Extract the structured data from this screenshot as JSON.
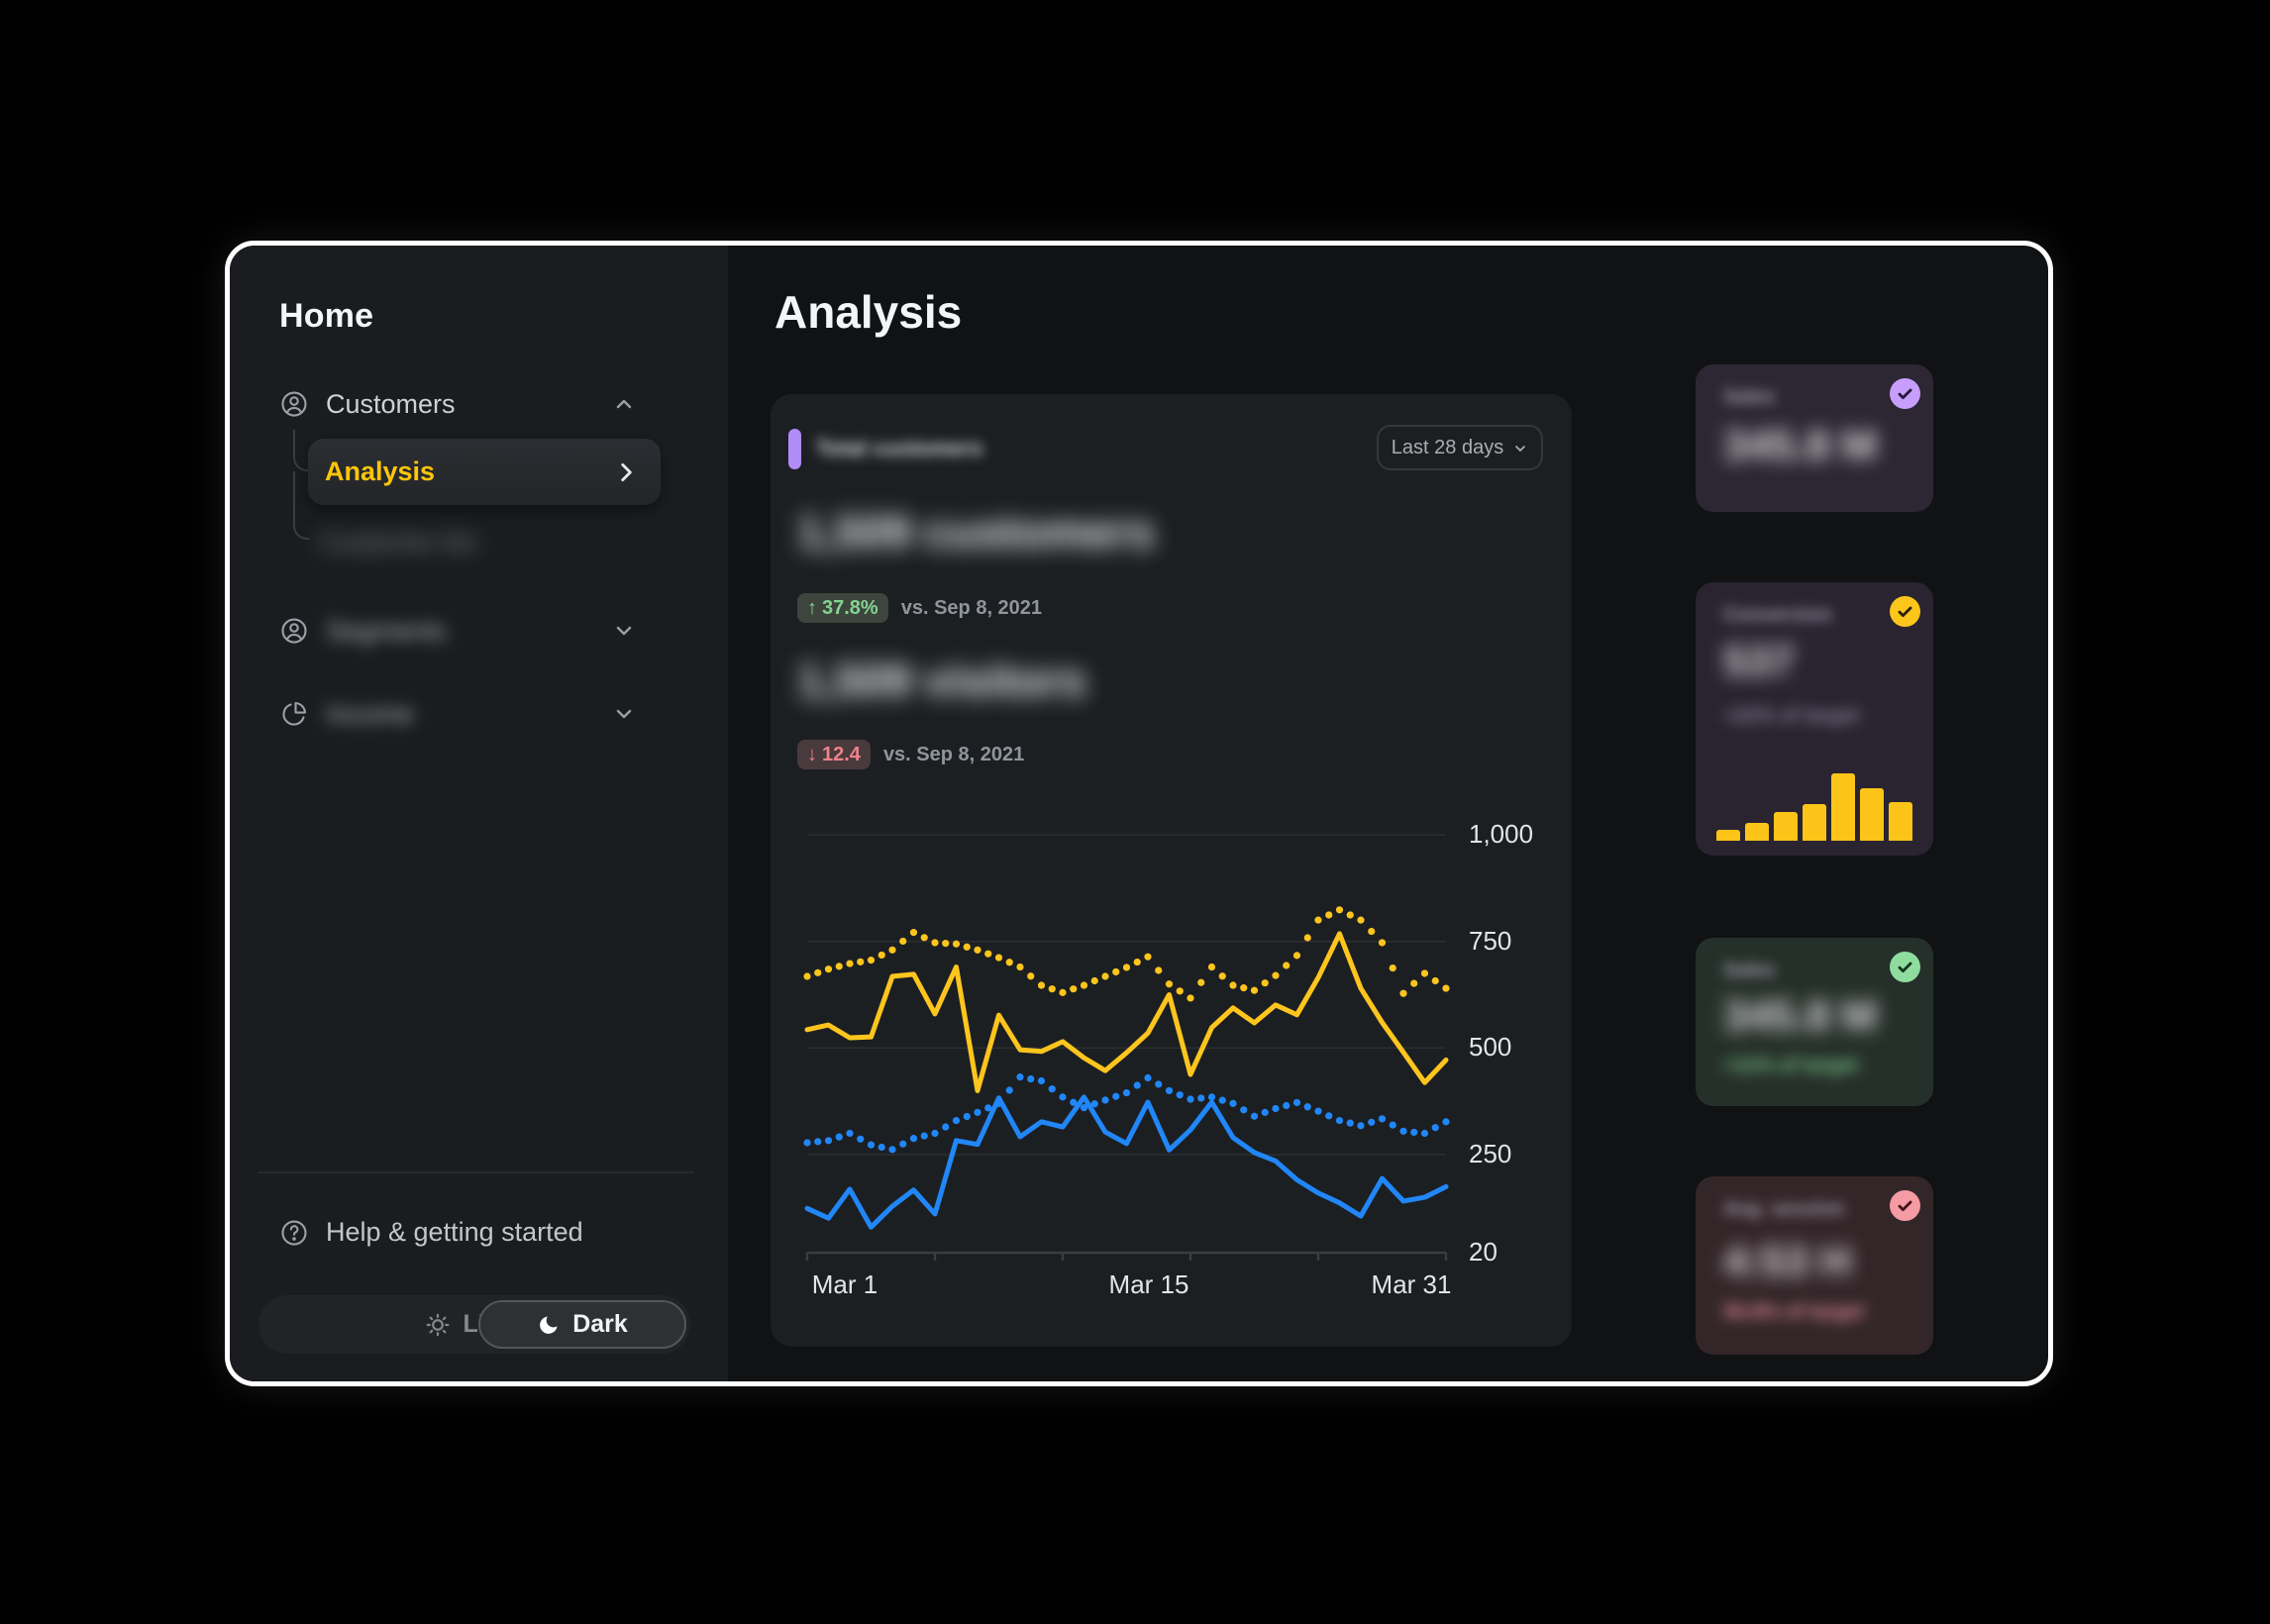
{
  "sidebar": {
    "title": "Home",
    "items": [
      {
        "label": "Customers",
        "icon": "user-circle",
        "chevron": "up",
        "blurred": false
      },
      {
        "label": "Customer list",
        "icon": null,
        "chevron": null,
        "blurred": true
      },
      {
        "label": "Segments",
        "icon": "user-circle",
        "chevron": "down",
        "blurred": true
      },
      {
        "label": "Income",
        "icon": "pie-chart",
        "chevron": "down",
        "blurred": true
      }
    ],
    "active_subitem": {
      "label": "Analysis",
      "color": "#fec60a"
    },
    "help_label": "Help & getting started",
    "theme_toggle": {
      "light_label": "Light",
      "dark_label": "Dark",
      "selected": "Dark"
    }
  },
  "main": {
    "page_title": "Analysis",
    "card": {
      "legend_label": "Total customers",
      "legend_color": "#b18cf9",
      "range_selector": "Last 28 days",
      "metrics": [
        {
          "value": "1,509 customers",
          "blurred": true,
          "badge": "37.8%",
          "direction": "up",
          "badge_color": "#84d491",
          "compare": "vs. Sep 8, 2021"
        },
        {
          "value": "1,509 visitors",
          "blurred": true,
          "badge": "12.4",
          "direction": "down",
          "badge_color": "#ef838a",
          "compare": "vs. Sep 8, 2021"
        }
      ]
    }
  },
  "chart_data": {
    "type": "line",
    "title": "Total customers - Last 28 days",
    "x_labels": [
      "Mar 1",
      "Mar 15",
      "Mar 31"
    ],
    "x_days": 31,
    "ylim": [
      20,
      1000
    ],
    "grid": true,
    "y_ticks": [
      {
        "label": "1,000",
        "value": 1000
      },
      {
        "label": "750",
        "value": 750
      },
      {
        "label": "500",
        "value": 500
      },
      {
        "label": "250",
        "value": 250
      },
      {
        "label": "20",
        "value": 20
      }
    ],
    "series": [
      {
        "name": "customers-current",
        "style": "solid",
        "color": "#fdc51d",
        "values": [
          543,
          554,
          524,
          526,
          668,
          673,
          580,
          690,
          400,
          577,
          496,
          492,
          515,
          477,
          447,
          489,
          535,
          625,
          438,
          548,
          594,
          559,
          601,
          578,
          665,
          768,
          640,
          560,
          490,
          419,
          472
        ]
      },
      {
        "name": "customers-previous",
        "style": "dotted",
        "color": "#fdc51d",
        "values": [
          668,
          685,
          698,
          706,
          730,
          771,
          747,
          744,
          730,
          712,
          690,
          647,
          630,
          647,
          668,
          689,
          714,
          650,
          617,
          690,
          647,
          635,
          670,
          717,
          800,
          824,
          800,
          747,
          628,
          675,
          640
        ]
      },
      {
        "name": "visitors-current",
        "style": "solid",
        "color": "#2187f8",
        "values": [
          124,
          101,
          169,
          80,
          129,
          167,
          111,
          283,
          274,
          383,
          292,
          327,
          315,
          385,
          303,
          276,
          373,
          261,
          308,
          373,
          290,
          255,
          235,
          191,
          160,
          137,
          106,
          194,
          141,
          150,
          175
        ]
      },
      {
        "name": "visitors-previous",
        "style": "dotted",
        "color": "#2187f8",
        "values": [
          278,
          283,
          300,
          273,
          262,
          288,
          300,
          330,
          349,
          370,
          432,
          423,
          385,
          360,
          378,
          395,
          430,
          400,
          380,
          385,
          370,
          340,
          358,
          372,
          352,
          330,
          318,
          334,
          305,
          300,
          327
        ]
      }
    ]
  },
  "kpi_cards": [
    {
      "label": "Sales",
      "value": "345.8 M",
      "target": null,
      "bg": "#2d2733",
      "check_bg": "#c89efc",
      "check_glyph": "#261a38",
      "target_color": null,
      "blurred": true
    },
    {
      "label": "Conversion",
      "value": "537",
      "target": "+22% of target",
      "bg": "#292430",
      "check_bg": "#fdc61b",
      "check_glyph": "#2b2105",
      "target_color": "#8d8798",
      "bars": [
        16,
        27,
        42,
        55,
        100,
        78,
        57
      ],
      "bar_color": "#fcc419",
      "blurred": true
    },
    {
      "label": "Sales",
      "value": "345.8 M",
      "target": "+11% of target",
      "bg": "#26302a",
      "check_bg": "#8fdd9e",
      "check_glyph": "#15331f",
      "target_color": "#7cc98c",
      "blurred": true
    },
    {
      "label": "Avg. session",
      "value": "4:53 H",
      "target": "56.8% of target",
      "bg": "#332629",
      "check_bg": "#f59ba3",
      "check_glyph": "#421419",
      "target_color": "#ea8f99",
      "blurred": true
    }
  ]
}
